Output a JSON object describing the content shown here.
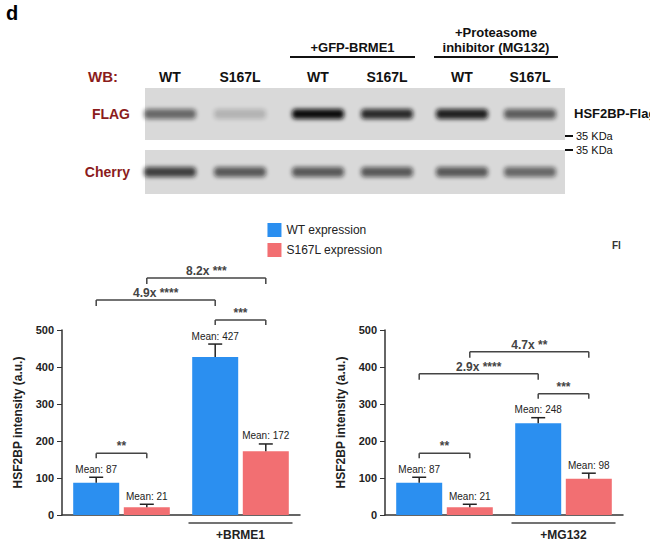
{
  "panel_label": "d",
  "blot": {
    "wb_label": "WB:",
    "lanes": [
      "WT",
      "S167L",
      "WT",
      "S167L",
      "WT",
      "S167L"
    ],
    "groups": [
      {
        "label": "+GFP-BRME1",
        "lanes": [
          2,
          3
        ]
      },
      {
        "label": "+Proteasome\ninhibitor (MG132)",
        "lanes": [
          4,
          5
        ]
      }
    ],
    "rows": [
      {
        "label": "FLAG",
        "right_label": "HSF2BP-Flag",
        "marker": "35 KDa"
      },
      {
        "label": "Cherry",
        "marker": "35 KDa"
      }
    ]
  },
  "stray_text": "Fl",
  "chart_data": [
    {
      "type": "bar",
      "categories": [
        null,
        "+BRME1"
      ],
      "series": [
        {
          "name": "WT expression",
          "color": "#2b8ff0",
          "values": [
            87,
            427
          ],
          "errors": [
            15,
            35
          ],
          "value_labels": [
            "Mean: 87",
            "Mean: 427"
          ]
        },
        {
          "name": "S167L expression",
          "color": "#f26f72",
          "values": [
            21,
            172
          ],
          "errors": [
            8,
            20
          ],
          "value_labels": [
            "Mean: 21",
            "Mean: 172"
          ]
        }
      ],
      "y_label": "HSF2BP intensity (a.u.)",
      "ylim": [
        0,
        500
      ],
      "yticks": [
        0,
        100,
        200,
        300,
        400,
        500
      ],
      "grid": false,
      "data_labels": true,
      "legend": "top",
      "annotations": [
        {
          "text": "**",
          "bars": [
            [
              0,
              0
            ],
            [
              1,
              0
            ]
          ]
        },
        {
          "text": "***",
          "bars": [
            [
              0,
              1
            ],
            [
              1,
              1
            ]
          ]
        },
        {
          "text": "4.9x ****",
          "bars": [
            [
              0,
              0
            ],
            [
              0,
              1
            ]
          ]
        },
        {
          "text": "8.2x ***",
          "bars": [
            [
              1,
              0
            ],
            [
              1,
              1
            ]
          ]
        }
      ]
    },
    {
      "type": "bar",
      "categories": [
        null,
        "+MG132"
      ],
      "series": [
        {
          "name": "WT expression",
          "color": "#2b8ff0",
          "values": [
            87,
            248
          ],
          "errors": [
            15,
            15
          ],
          "value_labels": [
            "Mean: 87",
            "Mean: 248"
          ]
        },
        {
          "name": "S167L expression",
          "color": "#f26f72",
          "values": [
            21,
            98
          ],
          "errors": [
            8,
            15
          ],
          "value_labels": [
            "Mean: 21",
            "Mean: 98"
          ]
        }
      ],
      "y_label": "HSF2BP intensity (a.u.)",
      "ylim": [
        0,
        500
      ],
      "yticks": [
        0,
        100,
        200,
        300,
        400,
        500
      ],
      "grid": false,
      "data_labels": true,
      "annotations": [
        {
          "text": "**",
          "bars": [
            [
              0,
              0
            ],
            [
              1,
              0
            ]
          ]
        },
        {
          "text": "***",
          "bars": [
            [
              0,
              1
            ],
            [
              1,
              1
            ]
          ]
        },
        {
          "text": "2.9x ****",
          "bars": [
            [
              0,
              0
            ],
            [
              0,
              1
            ]
          ]
        },
        {
          "text": "4.7x **",
          "bars": [
            [
              1,
              0
            ],
            [
              1,
              1
            ]
          ]
        }
      ]
    }
  ]
}
